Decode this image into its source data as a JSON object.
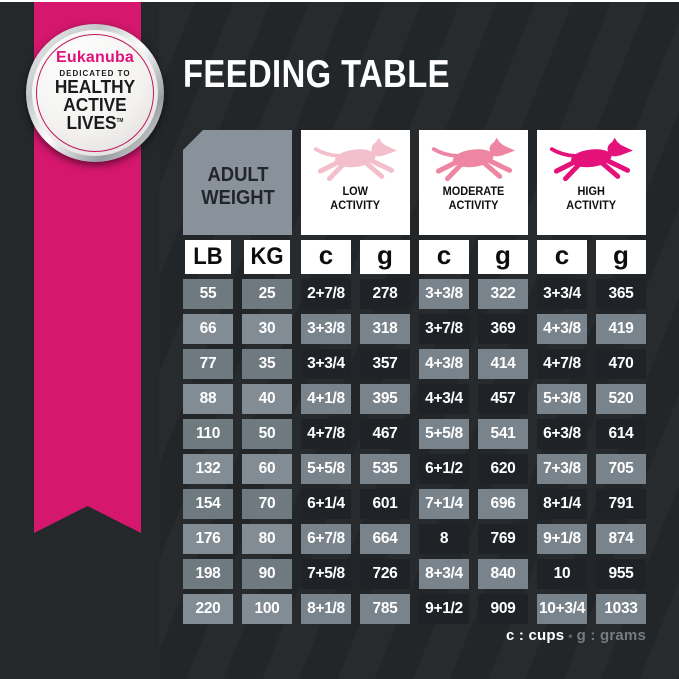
{
  "title": "FEEDING TABLE",
  "badge": {
    "brand": "Eukanuba",
    "dedication": "DEDICATED TO",
    "line1": "HEALTHY",
    "line2": "ACTIVE",
    "line3": "LIVES",
    "trademark": "TM"
  },
  "table": {
    "corner_header": {
      "line1": "ADULT",
      "line2": "WEIGHT"
    },
    "activity_columns": [
      {
        "line1": "LOW",
        "line2": "ACTIVITY",
        "dog_color": "#F4BFCC",
        "dog_icon": "running-dog-icon"
      },
      {
        "line1": "MODERATE",
        "line2": "ACTIVITY",
        "dog_color": "#EE85A2",
        "dog_icon": "running-dog-icon"
      },
      {
        "line1": "HIGH",
        "line2": "ACTIVITY",
        "dog_color": "#E5117B",
        "dog_icon": "running-dog-icon"
      }
    ],
    "unit_headers": [
      "LB",
      "KG",
      "c",
      "g",
      "c",
      "g",
      "c",
      "g"
    ],
    "rows": [
      {
        "lb": "55",
        "kg": "25",
        "low_c": "2+7/8",
        "low_g": "278",
        "mod_c": "3+3/8",
        "mod_g": "322",
        "high_c": "3+3/4",
        "high_g": "365"
      },
      {
        "lb": "66",
        "kg": "30",
        "low_c": "3+3/8",
        "low_g": "318",
        "mod_c": "3+7/8",
        "mod_g": "369",
        "high_c": "4+3/8",
        "high_g": "419"
      },
      {
        "lb": "77",
        "kg": "35",
        "low_c": "3+3/4",
        "low_g": "357",
        "mod_c": "4+3/8",
        "mod_g": "414",
        "high_c": "4+7/8",
        "high_g": "470"
      },
      {
        "lb": "88",
        "kg": "40",
        "low_c": "4+1/8",
        "low_g": "395",
        "mod_c": "4+3/4",
        "mod_g": "457",
        "high_c": "5+3/8",
        "high_g": "520"
      },
      {
        "lb": "110",
        "kg": "50",
        "low_c": "4+7/8",
        "low_g": "467",
        "mod_c": "5+5/8",
        "mod_g": "541",
        "high_c": "6+3/8",
        "high_g": "614"
      },
      {
        "lb": "132",
        "kg": "60",
        "low_c": "5+5/8",
        "low_g": "535",
        "mod_c": "6+1/2",
        "mod_g": "620",
        "high_c": "7+3/8",
        "high_g": "705"
      },
      {
        "lb": "154",
        "kg": "70",
        "low_c": "6+1/4",
        "low_g": "601",
        "mod_c": "7+1/4",
        "mod_g": "696",
        "high_c": "8+1/4",
        "high_g": "791"
      },
      {
        "lb": "176",
        "kg": "80",
        "low_c": "6+7/8",
        "low_g": "664",
        "mod_c": "8",
        "mod_g": "769",
        "high_c": "9+1/8",
        "high_g": "874"
      },
      {
        "lb": "198",
        "kg": "90",
        "low_c": "7+5/8",
        "low_g": "726",
        "mod_c": "8+3/4",
        "mod_g": "840",
        "high_c": "10",
        "high_g": "955"
      },
      {
        "lb": "220",
        "kg": "100",
        "low_c": "8+1/8",
        "low_g": "785",
        "mod_c": "9+1/2",
        "mod_g": "909",
        "high_c": "10+3/4",
        "high_g": "1033"
      }
    ]
  },
  "legend": {
    "cups": "c : cups",
    "sep": "•",
    "grams": "g : grams"
  },
  "colors": {
    "background": "#24282B",
    "ribbon": "#D5176E",
    "cell_dark": "#1F2327",
    "cell_gray": "#79838B",
    "lbkg_odd": "#6F7980",
    "lbkg_even": "#828C94",
    "box_gray": "#89929A",
    "header_bg": "#FFFFFF",
    "brand_pink": "#E2127D",
    "legend_gray": "#737C83"
  },
  "chart_data": {
    "type": "table",
    "title": "FEEDING TABLE",
    "column_groups": [
      "ADULT WEIGHT",
      "LOW ACTIVITY",
      "MODERATE ACTIVITY",
      "HIGH ACTIVITY"
    ],
    "columns": [
      "LB",
      "KG",
      "c",
      "g",
      "c",
      "g",
      "c",
      "g"
    ],
    "rows": [
      [
        "55",
        "25",
        "2+7/8",
        "278",
        "3+3/8",
        "322",
        "3+3/4",
        "365"
      ],
      [
        "66",
        "30",
        "3+3/8",
        "318",
        "3+7/8",
        "369",
        "4+3/8",
        "419"
      ],
      [
        "77",
        "35",
        "3+3/4",
        "357",
        "4+3/8",
        "414",
        "4+7/8",
        "470"
      ],
      [
        "88",
        "40",
        "4+1/8",
        "395",
        "4+3/4",
        "457",
        "5+3/8",
        "520"
      ],
      [
        "110",
        "50",
        "4+7/8",
        "467",
        "5+5/8",
        "541",
        "6+3/8",
        "614"
      ],
      [
        "132",
        "60",
        "5+5/8",
        "535",
        "6+1/2",
        "620",
        "7+3/8",
        "705"
      ],
      [
        "154",
        "70",
        "6+1/4",
        "601",
        "7+1/4",
        "696",
        "8+1/4",
        "791"
      ],
      [
        "176",
        "80",
        "6+7/8",
        "664",
        "8",
        "769",
        "9+1/8",
        "874"
      ],
      [
        "198",
        "90",
        "7+5/8",
        "726",
        "8+3/4",
        "840",
        "10",
        "955"
      ],
      [
        "220",
        "100",
        "8+1/8",
        "785",
        "9+1/2",
        "909",
        "10+3/4",
        "1033"
      ]
    ],
    "footnote": "c : cups • g : grams"
  }
}
